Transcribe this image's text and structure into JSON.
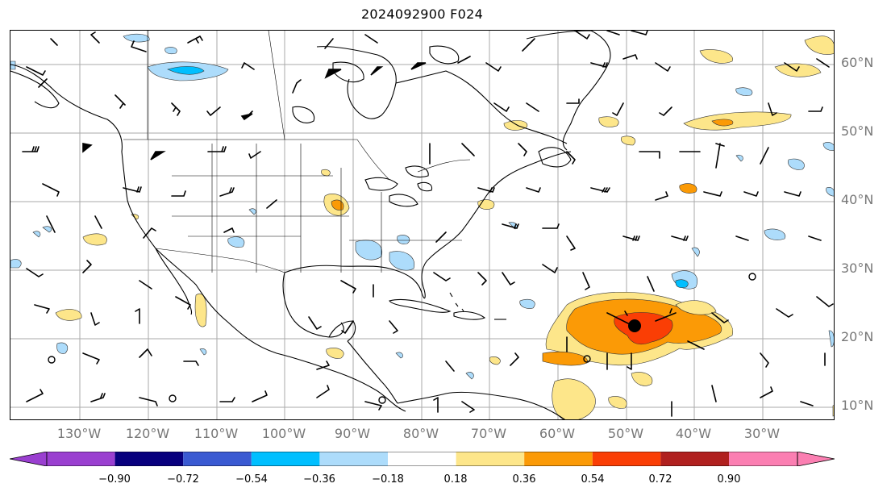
{
  "header": {
    "title": "2024092900 F024"
  },
  "map": {
    "lat_labels": [
      "60°N",
      "50°N",
      "40°N",
      "30°N",
      "20°N",
      "10°N"
    ],
    "lon_labels": [
      "130°W",
      "120°W",
      "110°W",
      "100°W",
      "90°W",
      "80°W",
      "70°W",
      "60°W",
      "50°W",
      "40°W",
      "30°W"
    ],
    "gridline_color": "#aaaaaa",
    "label_color": "#777777",
    "storm_marker": "black-dot"
  },
  "colorbar": {
    "ticks": [
      "−0.90",
      "−0.72",
      "−0.54",
      "−0.36",
      "−0.18",
      "0.18",
      "0.36",
      "0.54",
      "0.72",
      "0.90"
    ],
    "colors": [
      "#9a3fd0",
      "#08007e",
      "#3a5ad2",
      "#00bfff",
      "#addcfb",
      "#ffffff",
      "#fde68a",
      "#fb9a06",
      "#fa3e05",
      "#b0201f",
      "#fb7fb2"
    ]
  }
}
